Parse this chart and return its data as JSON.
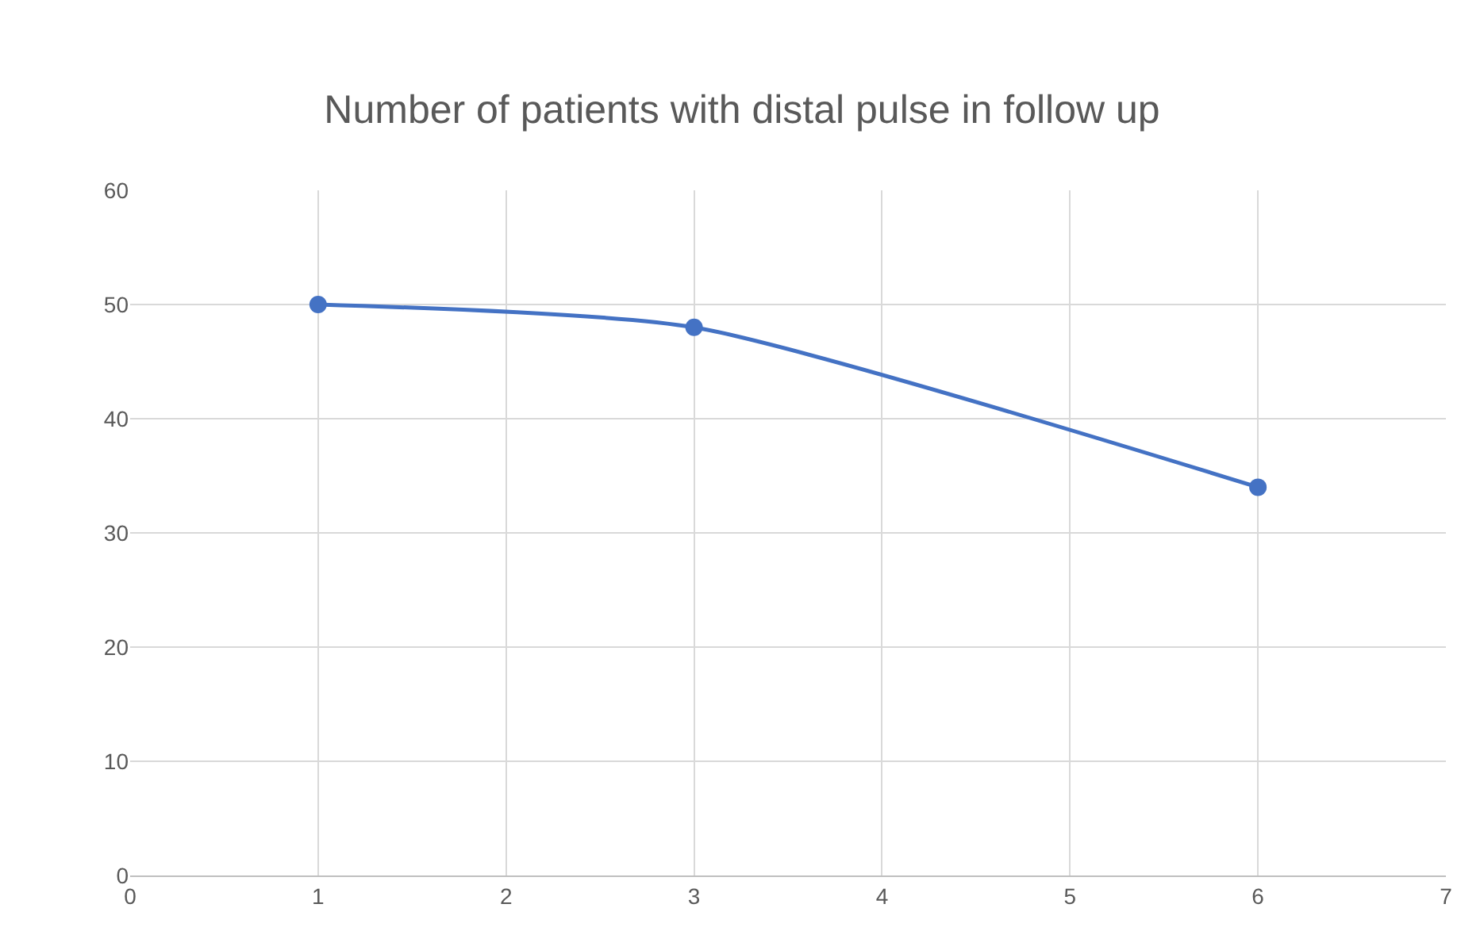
{
  "chart_data": {
    "type": "line",
    "title": "Number of patients with distal pulse in follow up",
    "x": [
      1,
      3,
      6
    ],
    "series": [
      {
        "color": "#4472c4",
        "values": [
          50,
          48,
          34
        ]
      }
    ],
    "xlim": [
      0,
      7
    ],
    "xticks": [
      0,
      1,
      2,
      3,
      4,
      5,
      6,
      7
    ],
    "ylim": [
      0,
      60
    ],
    "yticks": [
      0,
      10,
      20,
      30,
      40,
      50,
      60
    ],
    "grid": true,
    "marker": "circle",
    "line_style": "solid"
  }
}
